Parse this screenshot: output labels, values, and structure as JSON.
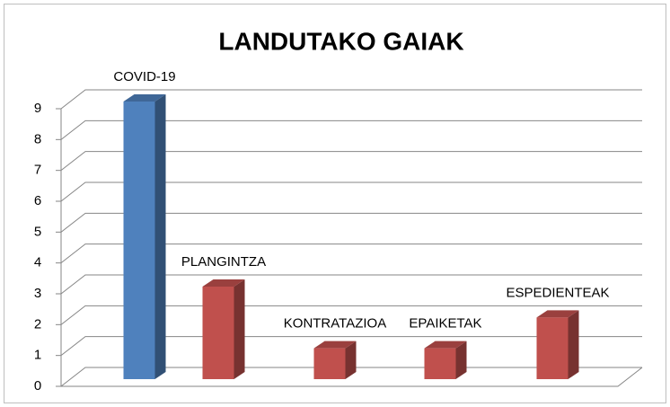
{
  "chart_data": {
    "type": "bar3d",
    "title": "LANDUTAKO GAIAK",
    "categories": [
      "COVID-19",
      "PLANGINTZA",
      "KONTRATAZIOA",
      "EPAIKETAK",
      "ESPEDIENTEAK"
    ],
    "values": [
      9,
      3,
      1,
      1,
      2
    ],
    "colors": [
      "#4f81bd",
      "#c0504d",
      "#c0504d",
      "#c0504d",
      "#c0504d"
    ],
    "ylim": [
      0,
      9
    ],
    "yticks": [
      0,
      1,
      2,
      3,
      4,
      5,
      6,
      7,
      8,
      9
    ],
    "grid": true
  }
}
